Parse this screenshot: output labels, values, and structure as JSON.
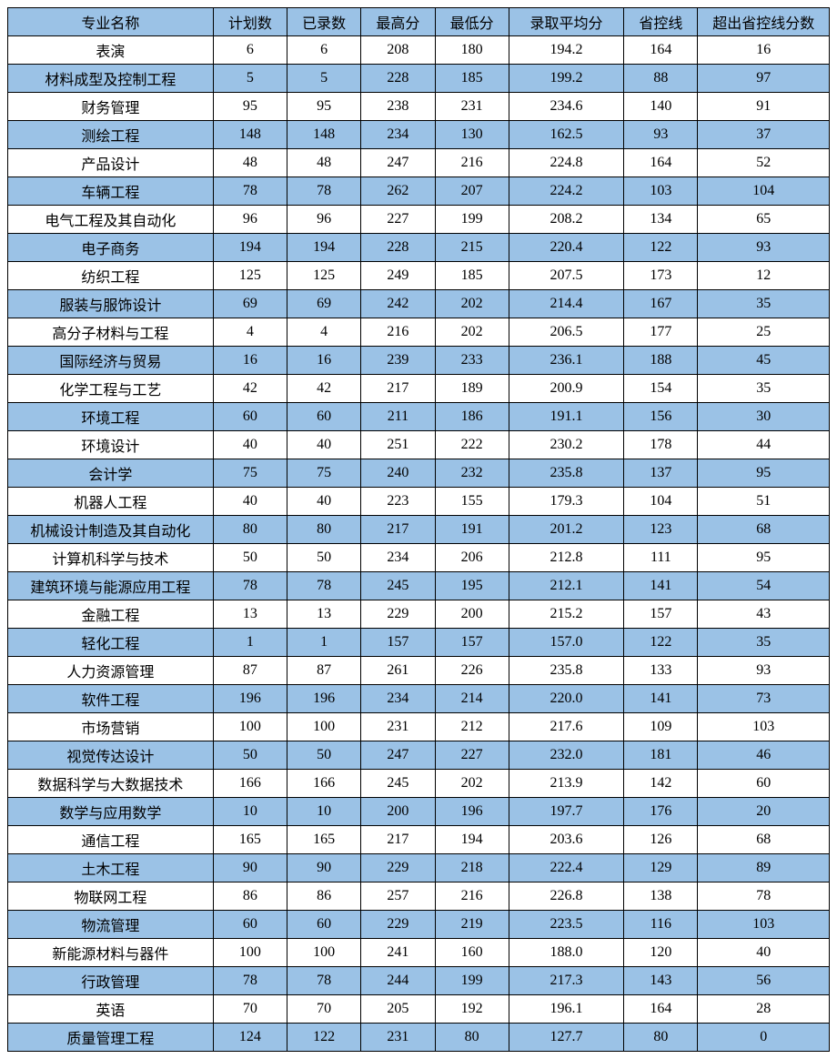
{
  "table": {
    "header_bg": "#9bc2e6",
    "alt_bg": "#9bc2e6",
    "white_bg": "#ffffff",
    "border_color": "#000000",
    "font_size": 16,
    "columns": [
      "专业名称",
      "计划数",
      "已录数",
      "最高分",
      "最低分",
      "录取平均分",
      "省控线",
      "超出省控线分数"
    ],
    "rows": [
      [
        "表演",
        "6",
        "6",
        "208",
        "180",
        "194.2",
        "164",
        "16"
      ],
      [
        "材料成型及控制工程",
        "5",
        "5",
        "228",
        "185",
        "199.2",
        "88",
        "97"
      ],
      [
        "财务管理",
        "95",
        "95",
        "238",
        "231",
        "234.6",
        "140",
        "91"
      ],
      [
        "测绘工程",
        "148",
        "148",
        "234",
        "130",
        "162.5",
        "93",
        "37"
      ],
      [
        "产品设计",
        "48",
        "48",
        "247",
        "216",
        "224.8",
        "164",
        "52"
      ],
      [
        "车辆工程",
        "78",
        "78",
        "262",
        "207",
        "224.2",
        "103",
        "104"
      ],
      [
        "电气工程及其自动化",
        "96",
        "96",
        "227",
        "199",
        "208.2",
        "134",
        "65"
      ],
      [
        "电子商务",
        "194",
        "194",
        "228",
        "215",
        "220.4",
        "122",
        "93"
      ],
      [
        "纺织工程",
        "125",
        "125",
        "249",
        "185",
        "207.5",
        "173",
        "12"
      ],
      [
        "服装与服饰设计",
        "69",
        "69",
        "242",
        "202",
        "214.4",
        "167",
        "35"
      ],
      [
        "高分子材料与工程",
        "4",
        "4",
        "216",
        "202",
        "206.5",
        "177",
        "25"
      ],
      [
        "国际经济与贸易",
        "16",
        "16",
        "239",
        "233",
        "236.1",
        "188",
        "45"
      ],
      [
        "化学工程与工艺",
        "42",
        "42",
        "217",
        "189",
        "200.9",
        "154",
        "35"
      ],
      [
        "环境工程",
        "60",
        "60",
        "211",
        "186",
        "191.1",
        "156",
        "30"
      ],
      [
        "环境设计",
        "40",
        "40",
        "251",
        "222",
        "230.2",
        "178",
        "44"
      ],
      [
        "会计学",
        "75",
        "75",
        "240",
        "232",
        "235.8",
        "137",
        "95"
      ],
      [
        "机器人工程",
        "40",
        "40",
        "223",
        "155",
        "179.3",
        "104",
        "51"
      ],
      [
        "机械设计制造及其自动化",
        "80",
        "80",
        "217",
        "191",
        "201.2",
        "123",
        "68"
      ],
      [
        "计算机科学与技术",
        "50",
        "50",
        "234",
        "206",
        "212.8",
        "111",
        "95"
      ],
      [
        "建筑环境与能源应用工程",
        "78",
        "78",
        "245",
        "195",
        "212.1",
        "141",
        "54"
      ],
      [
        "金融工程",
        "13",
        "13",
        "229",
        "200",
        "215.2",
        "157",
        "43"
      ],
      [
        "轻化工程",
        "1",
        "1",
        "157",
        "157",
        "157.0",
        "122",
        "35"
      ],
      [
        "人力资源管理",
        "87",
        "87",
        "261",
        "226",
        "235.8",
        "133",
        "93"
      ],
      [
        "软件工程",
        "196",
        "196",
        "234",
        "214",
        "220.0",
        "141",
        "73"
      ],
      [
        "市场营销",
        "100",
        "100",
        "231",
        "212",
        "217.6",
        "109",
        "103"
      ],
      [
        "视觉传达设计",
        "50",
        "50",
        "247",
        "227",
        "232.0",
        "181",
        "46"
      ],
      [
        "数据科学与大数据技术",
        "166",
        "166",
        "245",
        "202",
        "213.9",
        "142",
        "60"
      ],
      [
        "数学与应用数学",
        "10",
        "10",
        "200",
        "196",
        "197.7",
        "176",
        "20"
      ],
      [
        "通信工程",
        "165",
        "165",
        "217",
        "194",
        "203.6",
        "126",
        "68"
      ],
      [
        "土木工程",
        "90",
        "90",
        "229",
        "218",
        "222.4",
        "129",
        "89"
      ],
      [
        "物联网工程",
        "86",
        "86",
        "257",
        "216",
        "226.8",
        "138",
        "78"
      ],
      [
        "物流管理",
        "60",
        "60",
        "229",
        "219",
        "223.5",
        "116",
        "103"
      ],
      [
        "新能源材料与器件",
        "100",
        "100",
        "241",
        "160",
        "188.0",
        "120",
        "40"
      ],
      [
        "行政管理",
        "78",
        "78",
        "244",
        "199",
        "217.3",
        "143",
        "56"
      ],
      [
        "英语",
        "70",
        "70",
        "205",
        "192",
        "196.1",
        "164",
        "28"
      ],
      [
        "质量管理工程",
        "124",
        "122",
        "231",
        "80",
        "127.7",
        "80",
        "0"
      ]
    ]
  }
}
